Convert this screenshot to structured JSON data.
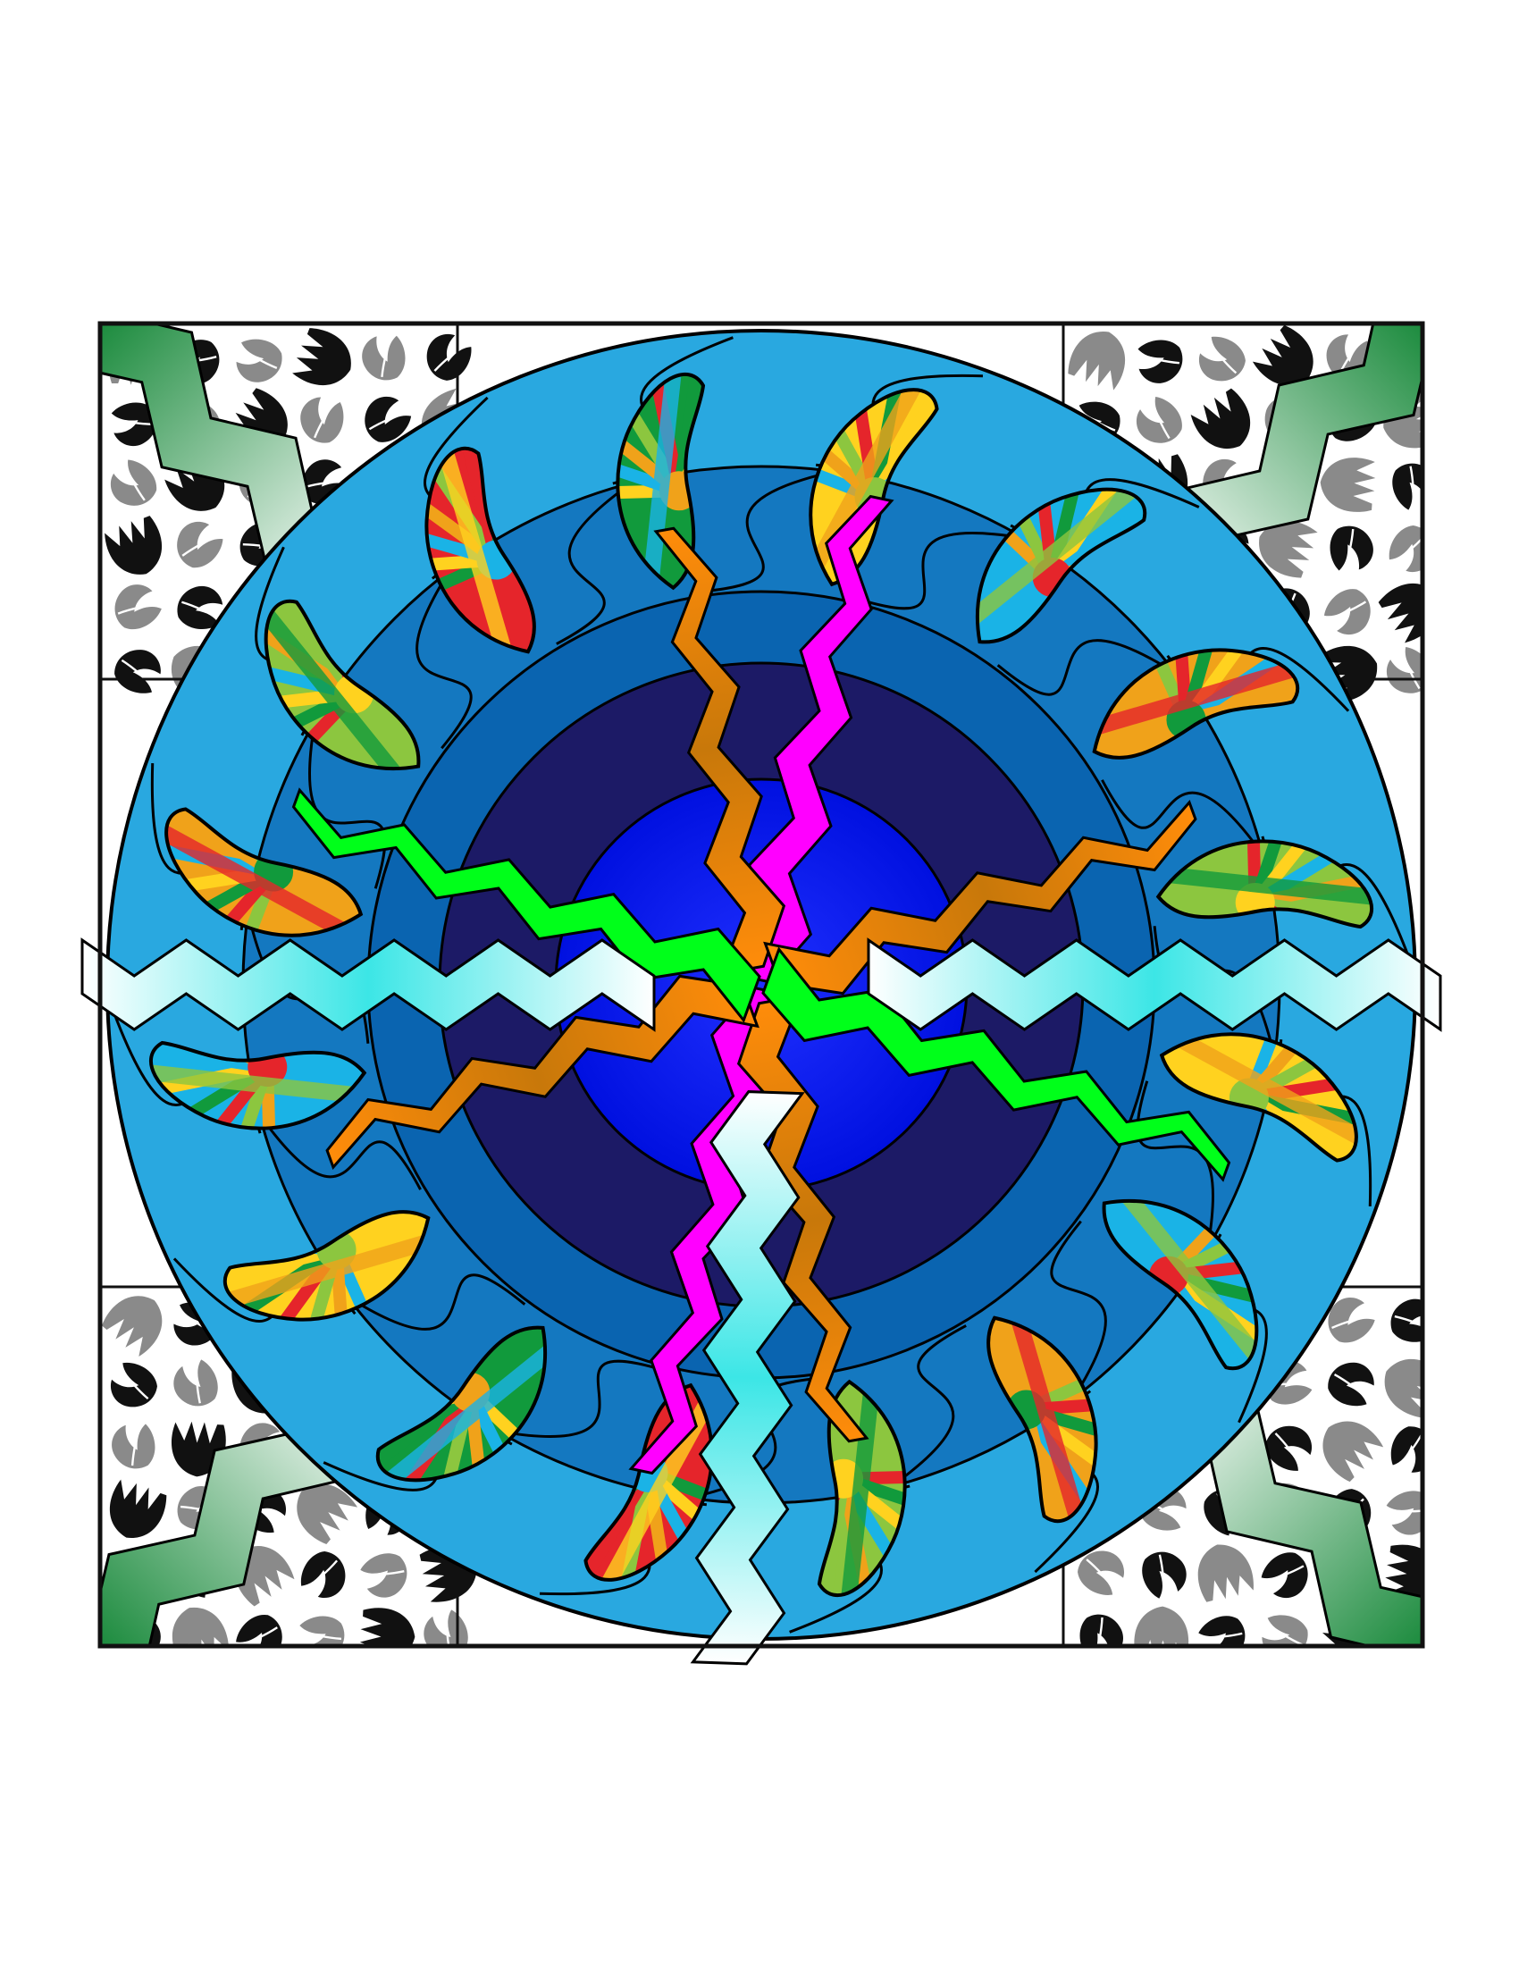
{
  "artwork": {
    "colors": {
      "page_bg": "#ffffff",
      "frame_stroke": "#111111",
      "corner_tile_bg": "#ffffff",
      "leaf_black": "#111111",
      "leaf_gray": "#8a8a8a",
      "outer_ring": "#29a8e0",
      "mid_ring": "#1478c0",
      "inner_ring": "#0a64b0",
      "core": "#1c1a66",
      "center": "#0010f0",
      "outline": "#000000"
    },
    "flame_palette": [
      "#ffd21f",
      "#1ab3e6",
      "#f0a21a",
      "#8cc63f",
      "#e5252b",
      "#119a3c"
    ],
    "bolts": [
      {
        "name": "bolt-magenta",
        "color_a": "#ff00ff",
        "color_b": "#ff00ff",
        "count": 2
      },
      {
        "name": "bolt-orange",
        "color_a": "#ff8c0a",
        "color_b": "#c8780a",
        "count": 4
      },
      {
        "name": "bolt-green",
        "color_a": "#00ff1a",
        "color_b": "#00ff1a",
        "count": 2
      },
      {
        "name": "bolt-dark-green",
        "color_a": "#1a8a3c",
        "color_b": "#ffffff",
        "count": 4
      },
      {
        "name": "bolt-white",
        "color_a": "#ffffff",
        "color_b": "#3ce6e6",
        "count": 3
      }
    ]
  }
}
